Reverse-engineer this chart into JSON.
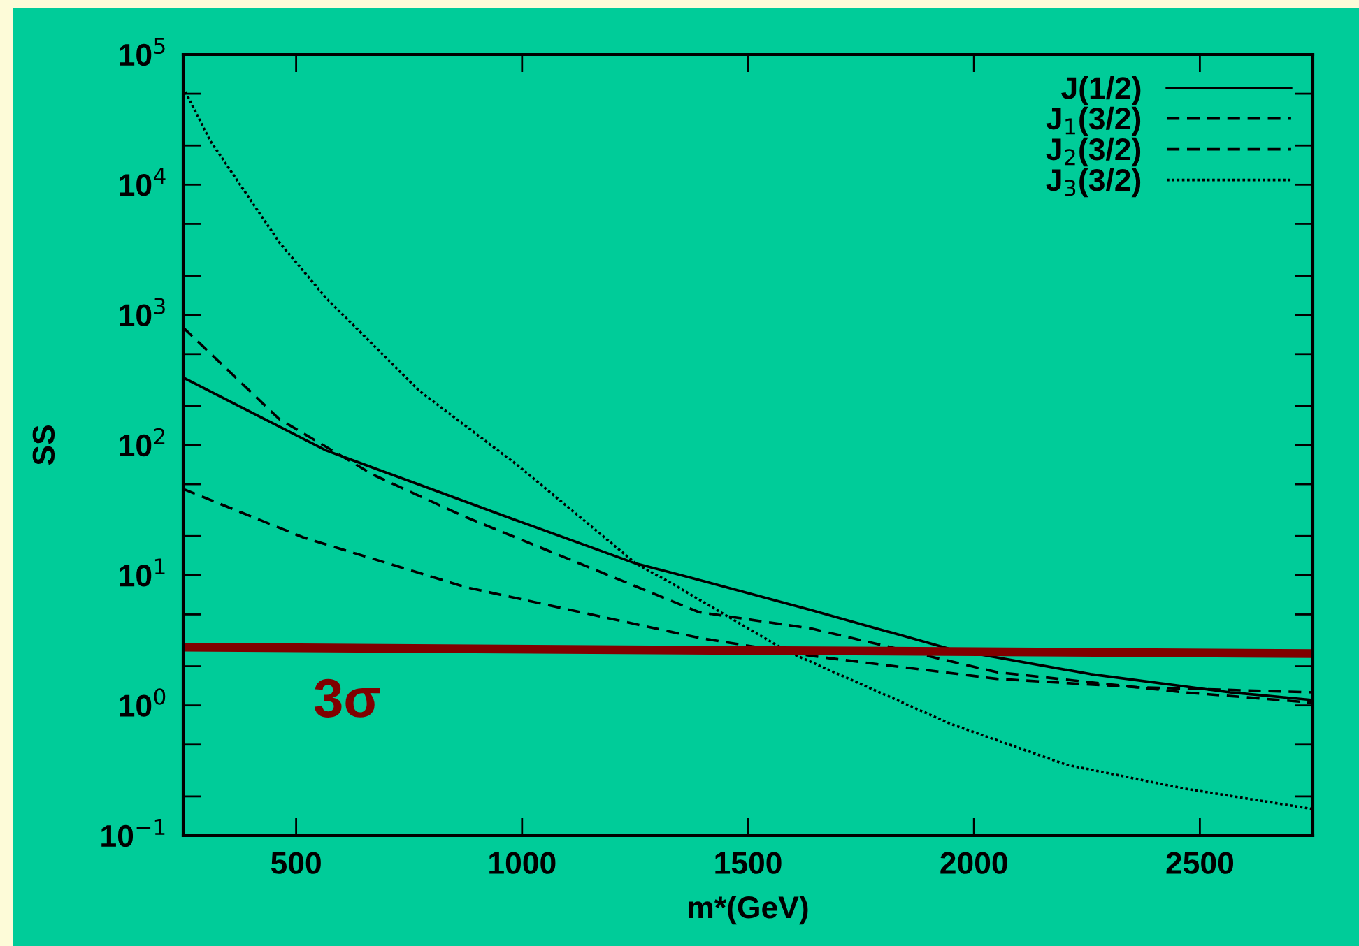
{
  "chart_data": {
    "type": "line",
    "xlabel": "m*(GeV)",
    "ylabel": "SS",
    "log": "y",
    "xlim": [
      250,
      2750
    ],
    "xticks": [
      500,
      1000,
      1500,
      2000,
      2500
    ],
    "ylim": [
      0.1,
      100000
    ],
    "yticks": [
      {
        "value": 0.1,
        "label": "10$^{−1}$"
      },
      {
        "value": 0.2,
        "label": null
      },
      {
        "value": 0.5,
        "label": null
      },
      {
        "value": 1,
        "label": "10$^{0}$"
      },
      {
        "value": 2,
        "label": null
      },
      {
        "value": 5,
        "label": null
      },
      {
        "value": 10,
        "label": "10$^{1}$"
      },
      {
        "value": 20,
        "label": null
      },
      {
        "value": 50,
        "label": null
      },
      {
        "value": 100,
        "label": "10$^{2}$"
      },
      {
        "value": 200,
        "label": null
      },
      {
        "value": 500,
        "label": null
      },
      {
        "value": 1000,
        "label": "10$^{3}$"
      },
      {
        "value": 2000,
        "label": null
      },
      {
        "value": 5000,
        "label": null
      },
      {
        "value": 10000,
        "label": "10$^{4}$"
      },
      {
        "value": 20000,
        "label": null
      },
      {
        "value": 50000,
        "label": null
      },
      {
        "value": 100000,
        "label": "10$^{5}$"
      }
    ],
    "grid": false,
    "legend": "top right",
    "marker": "none",
    "series": [
      {
        "name": "J(1/2)",
        "color": "#000000",
        "line_style": "solid",
        "x": [
          250,
          566,
          980,
          1252,
          1330,
          1640,
          1949,
          2258,
          2567,
          2750
        ],
        "values": [
          330,
          91,
          27,
          12.3,
          10.5,
          5.4,
          2.7,
          1.74,
          1.26,
          1.1
        ]
      },
      {
        "name": "J$_{1}$(3/2)",
        "color": "#000000",
        "line_style": "dashed",
        "x": [
          250,
          516,
          875,
          1392,
          1640,
          2051,
          2360,
          2750
        ],
        "values": [
          46,
          19.5,
          8.1,
          3.3,
          2.4,
          1.6,
          1.38,
          1.26
        ]
      },
      {
        "name": "J$_{2}$(3/2)",
        "color": "#000000",
        "line_style": "dashed",
        "x": [
          250,
          463,
          671,
          875,
          1392,
          1640,
          2051,
          2465,
          2750
        ],
        "values": [
          800,
          158,
          59,
          28,
          5.2,
          3.9,
          1.8,
          1.26,
          1.05
        ]
      },
      {
        "name": "J$_{3}$(3/2)",
        "color": "#000000",
        "line_style": "dotted",
        "x": [
          250,
          309,
          463,
          566,
          773,
          990,
          1252,
          1330,
          1587,
          1949,
          2205,
          2465,
          2750
        ],
        "values": [
          56000,
          22000,
          3600,
          1350,
          260,
          70,
          12.3,
          8.7,
          2.6,
          0.72,
          0.35,
          0.23,
          0.16
        ]
      },
      {
        "color": "#800000",
        "line_style": "solid",
        "x": [
          250,
          2750
        ],
        "values": [
          2.8,
          2.5
        ]
      }
    ],
    "annotations": [
      "3σ"
    ]
  }
}
